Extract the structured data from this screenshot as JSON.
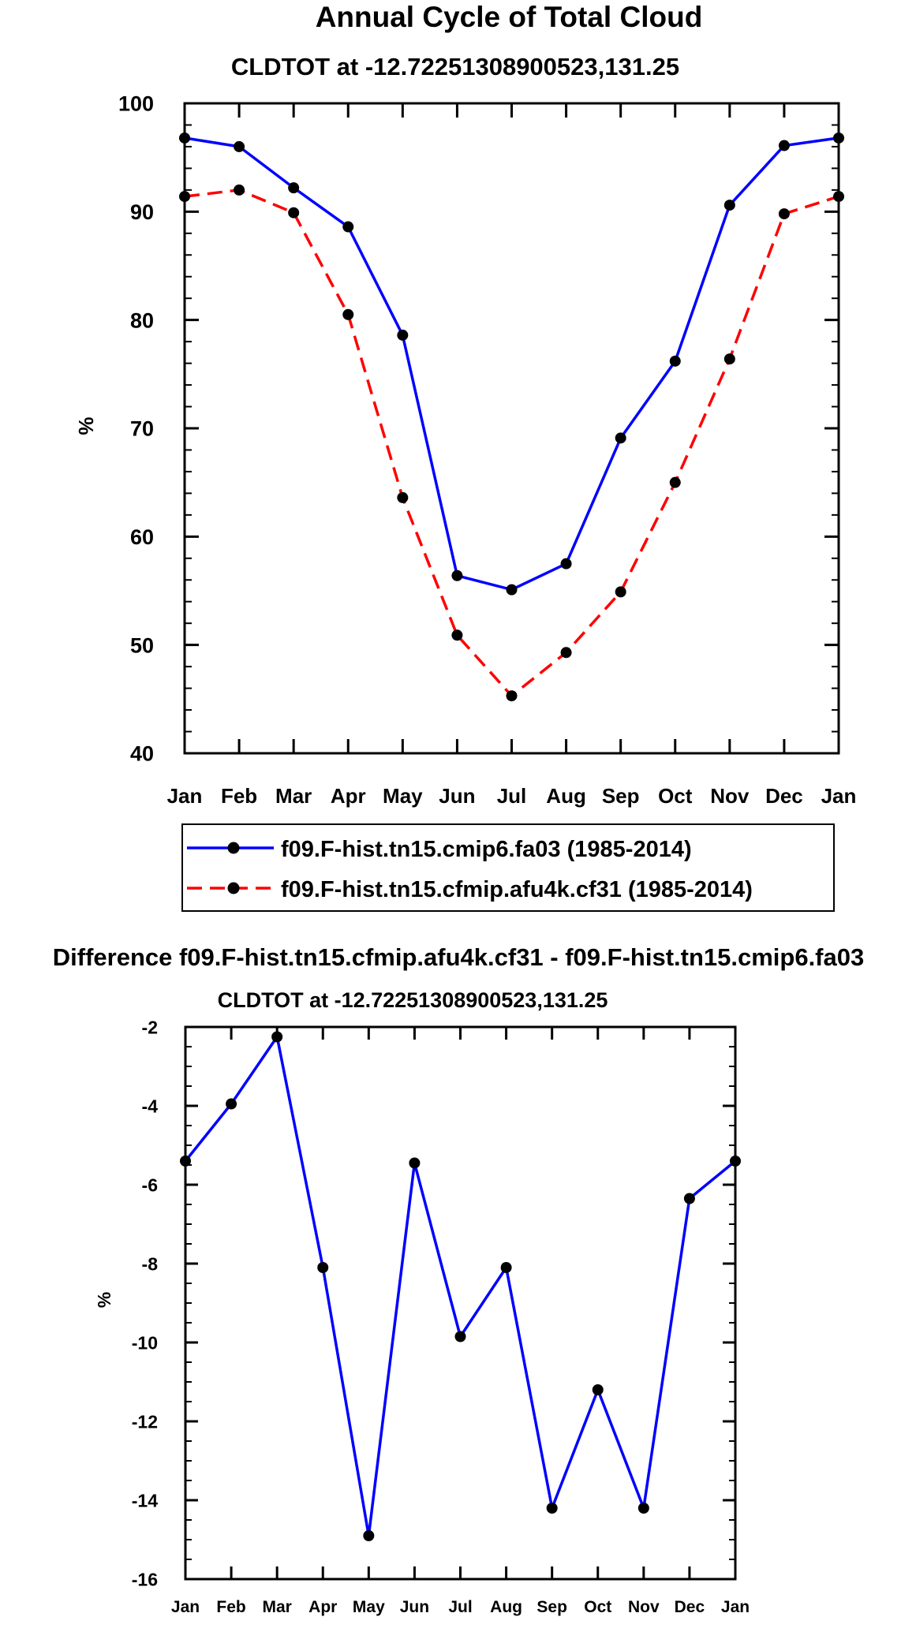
{
  "chart_data": [
    {
      "type": "line",
      "title": "Annual Cycle of Total Cloud",
      "subtitle": "CLDTOT at -12.72251308900523,131.25",
      "xlabel": "",
      "ylabel": "%",
      "categories": [
        "Jan",
        "Feb",
        "Mar",
        "Apr",
        "May",
        "Jun",
        "Jul",
        "Aug",
        "Sep",
        "Oct",
        "Nov",
        "Dec",
        "Jan"
      ],
      "ylim": [
        40,
        100
      ],
      "yticks": [
        "40",
        "50",
        "60",
        "70",
        "80",
        "90",
        "100"
      ],
      "ytick_values": [
        40,
        50,
        60,
        70,
        80,
        90,
        100
      ],
      "grid": false,
      "legend_position": "bottom",
      "series": [
        {
          "name": "f09.F-hist.tn15.cmip6.fa03 (1985-2014)",
          "color": "#0000ff",
          "dash": "solid",
          "values": [
            96.8,
            96.0,
            92.2,
            88.6,
            78.6,
            56.4,
            55.1,
            57.5,
            69.1,
            76.2,
            90.6,
            96.1,
            96.8
          ]
        },
        {
          "name": "f09.F-hist.tn15.cfmip.afu4k.cf31 (1985-2014)",
          "color": "#ff0000",
          "dash": "dashed",
          "values": [
            91.4,
            92.0,
            89.9,
            80.5,
            63.6,
            50.9,
            45.3,
            49.3,
            54.9,
            65.0,
            76.4,
            89.8,
            91.4
          ]
        }
      ]
    },
    {
      "type": "line",
      "title": "Difference f09.F-hist.tn15.cfmip.afu4k.cf31 - f09.F-hist.tn15.cmip6.fa03",
      "subtitle": "CLDTOT at -12.72251308900523,131.25",
      "xlabel": "",
      "ylabel": "%",
      "categories": [
        "Jan",
        "Feb",
        "Mar",
        "Apr",
        "May",
        "Jun",
        "Jul",
        "Aug",
        "Sep",
        "Oct",
        "Nov",
        "Dec",
        "Jan"
      ],
      "ylim": [
        -16,
        -2
      ],
      "yticks": [
        "-16",
        "-14",
        "-12",
        "-10",
        "-8",
        "-6",
        "-4",
        "-2"
      ],
      "ytick_values": [
        -16,
        -14,
        -12,
        -10,
        -8,
        -6,
        -4,
        -2
      ],
      "grid": false,
      "series": [
        {
          "name": "Difference",
          "color": "#0000ff",
          "dash": "solid",
          "values": [
            -5.4,
            -3.95,
            -2.25,
            -8.1,
            -14.9,
            -5.45,
            -9.85,
            -8.1,
            -14.2,
            -11.2,
            -14.2,
            -6.35,
            -5.4
          ]
        }
      ]
    }
  ]
}
